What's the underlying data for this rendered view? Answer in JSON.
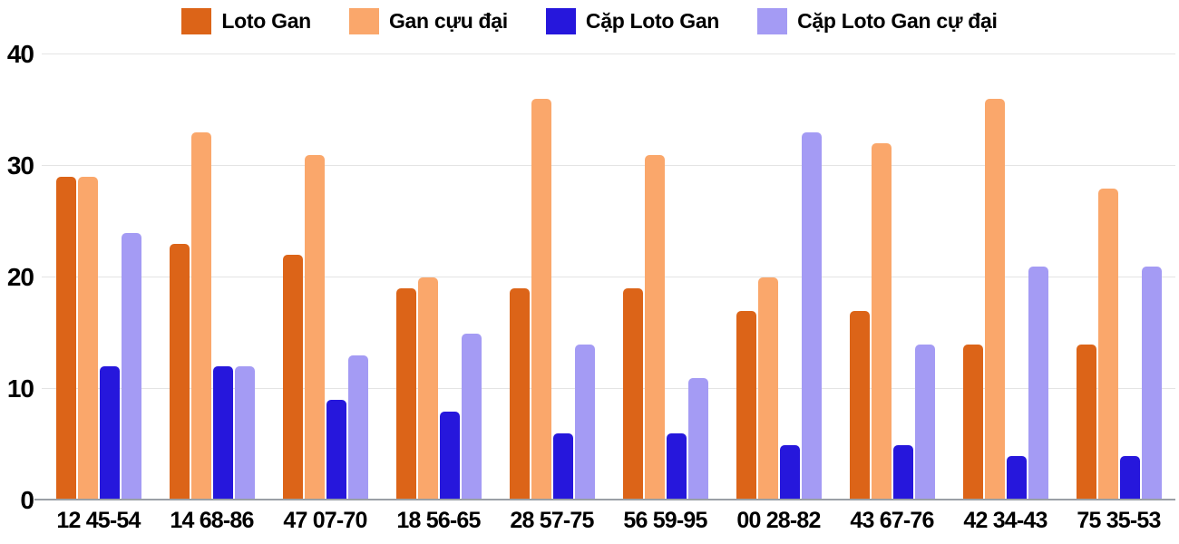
{
  "colors": {
    "background": "#ffffff",
    "grid": "#e4e4e4",
    "axis": "#9aa0a6",
    "text": "#000000"
  },
  "chart_data": {
    "type": "bar",
    "title": "",
    "xlabel": "",
    "ylabel": "",
    "categories": [
      "12 45-54",
      "14 68-86",
      "47 07-70",
      "18 56-65",
      "28 57-75",
      "56 59-95",
      "00 28-82",
      "43 67-76",
      "42 34-43",
      "75 35-53"
    ],
    "series": [
      {
        "name": "Loto Gan",
        "color": "#dc6418",
        "values": [
          29,
          23,
          22,
          19,
          19,
          19,
          17,
          17,
          14,
          14
        ]
      },
      {
        "name": "Gan cựu đại",
        "color": "#faa76b",
        "values": [
          29,
          33,
          31,
          20,
          36,
          31,
          20,
          32,
          36,
          28
        ]
      },
      {
        "name": "Cặp Loto Gan",
        "color": "#2617dc",
        "values": [
          12,
          12,
          9,
          8,
          6,
          6,
          5,
          5,
          4,
          4
        ]
      },
      {
        "name": "Cặp Loto Gan cự đại",
        "color": "#a49bf4",
        "values": [
          24,
          12,
          13,
          15,
          14,
          11,
          33,
          14,
          21,
          21
        ]
      }
    ],
    "ylim": [
      0,
      40
    ],
    "yticks": [
      0,
      10,
      20,
      30,
      40
    ],
    "grid": true,
    "legend_position": "top-center"
  }
}
